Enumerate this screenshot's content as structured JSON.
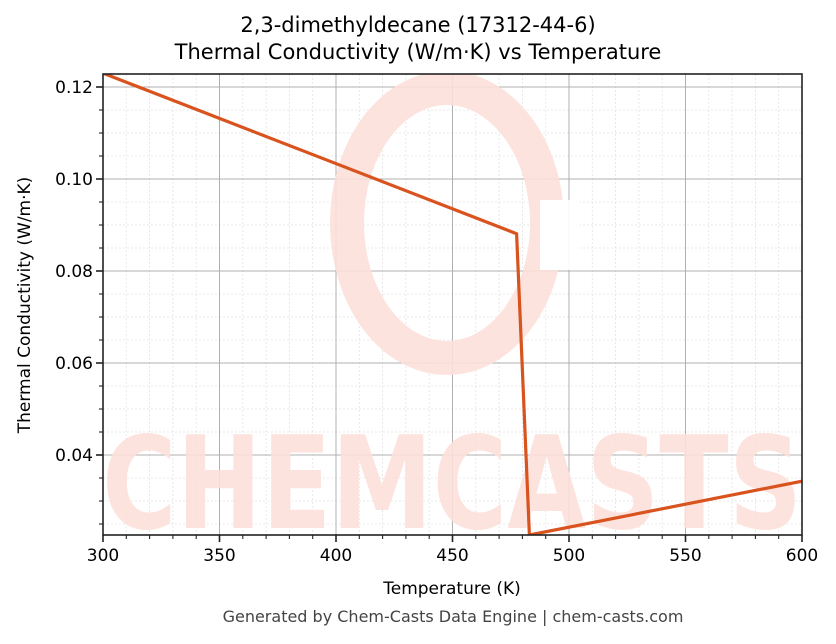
{
  "chart": {
    "title_line1": "2,3-dimethyldecane (17312-44-6)",
    "title_line2": "Thermal Conductivity (W/m·K) vs Temperature",
    "xlabel": "Temperature (K)",
    "ylabel": "Thermal Conductivity (W/m·K)",
    "footer": "Generated by Chem-Casts Data Engine | chem-casts.com",
    "watermark": "CHEMCASTS",
    "line_color": "#D9531E",
    "x_ticks": [
      "300",
      "350",
      "400",
      "450",
      "500",
      "550",
      "600"
    ],
    "y_ticks": [
      "0.12",
      "0.10",
      "0.08",
      "0.06",
      "0.04"
    ]
  },
  "chart_data": {
    "type": "line",
    "title": "2,3-dimethyldecane (17312-44-6) Thermal Conductivity (W/m·K) vs Temperature",
    "xlabel": "Temperature (K)",
    "ylabel": "Thermal Conductivity (W/m·K)",
    "xlim": [
      300,
      600
    ],
    "ylim": [
      0.0225,
      0.1232
    ],
    "grid": true,
    "legend": null,
    "x_ticks": [
      300,
      350,
      400,
      450,
      500,
      550,
      600
    ],
    "y_ticks": [
      0.04,
      0.06,
      0.08,
      0.1,
      0.12
    ],
    "series": [
      {
        "name": "Thermal Conductivity",
        "x": [
          300,
          477.5,
          483,
          600
        ],
        "y": [
          0.123,
          0.0881,
          0.0226,
          0.0343
        ]
      }
    ]
  }
}
